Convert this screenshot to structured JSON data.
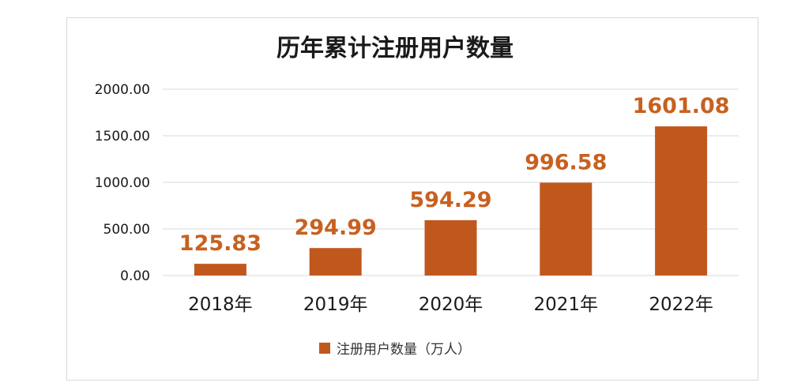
{
  "chart_data": {
    "type": "bar",
    "title": "历年累计注册用户数量",
    "categories": [
      "2018年",
      "2019年",
      "2020年",
      "2021年",
      "2022年"
    ],
    "series": [
      {
        "name": "注册用户数量（万人）",
        "values": [
          125.83,
          294.99,
          594.29,
          996.58,
          1601.08
        ],
        "data_labels": [
          "125.83",
          "294.99",
          "594.29",
          "996.58",
          "1601.08"
        ]
      }
    ],
    "yticks": [
      "0.00",
      "500.00",
      "1000.00",
      "1500.00",
      "2000.00"
    ],
    "ylim": [
      0,
      2000
    ],
    "grid": true,
    "legend": "bottom",
    "colors": {
      "bar": "#c0581e",
      "label": "#c8601f",
      "grid": "#d9d9d9"
    }
  }
}
